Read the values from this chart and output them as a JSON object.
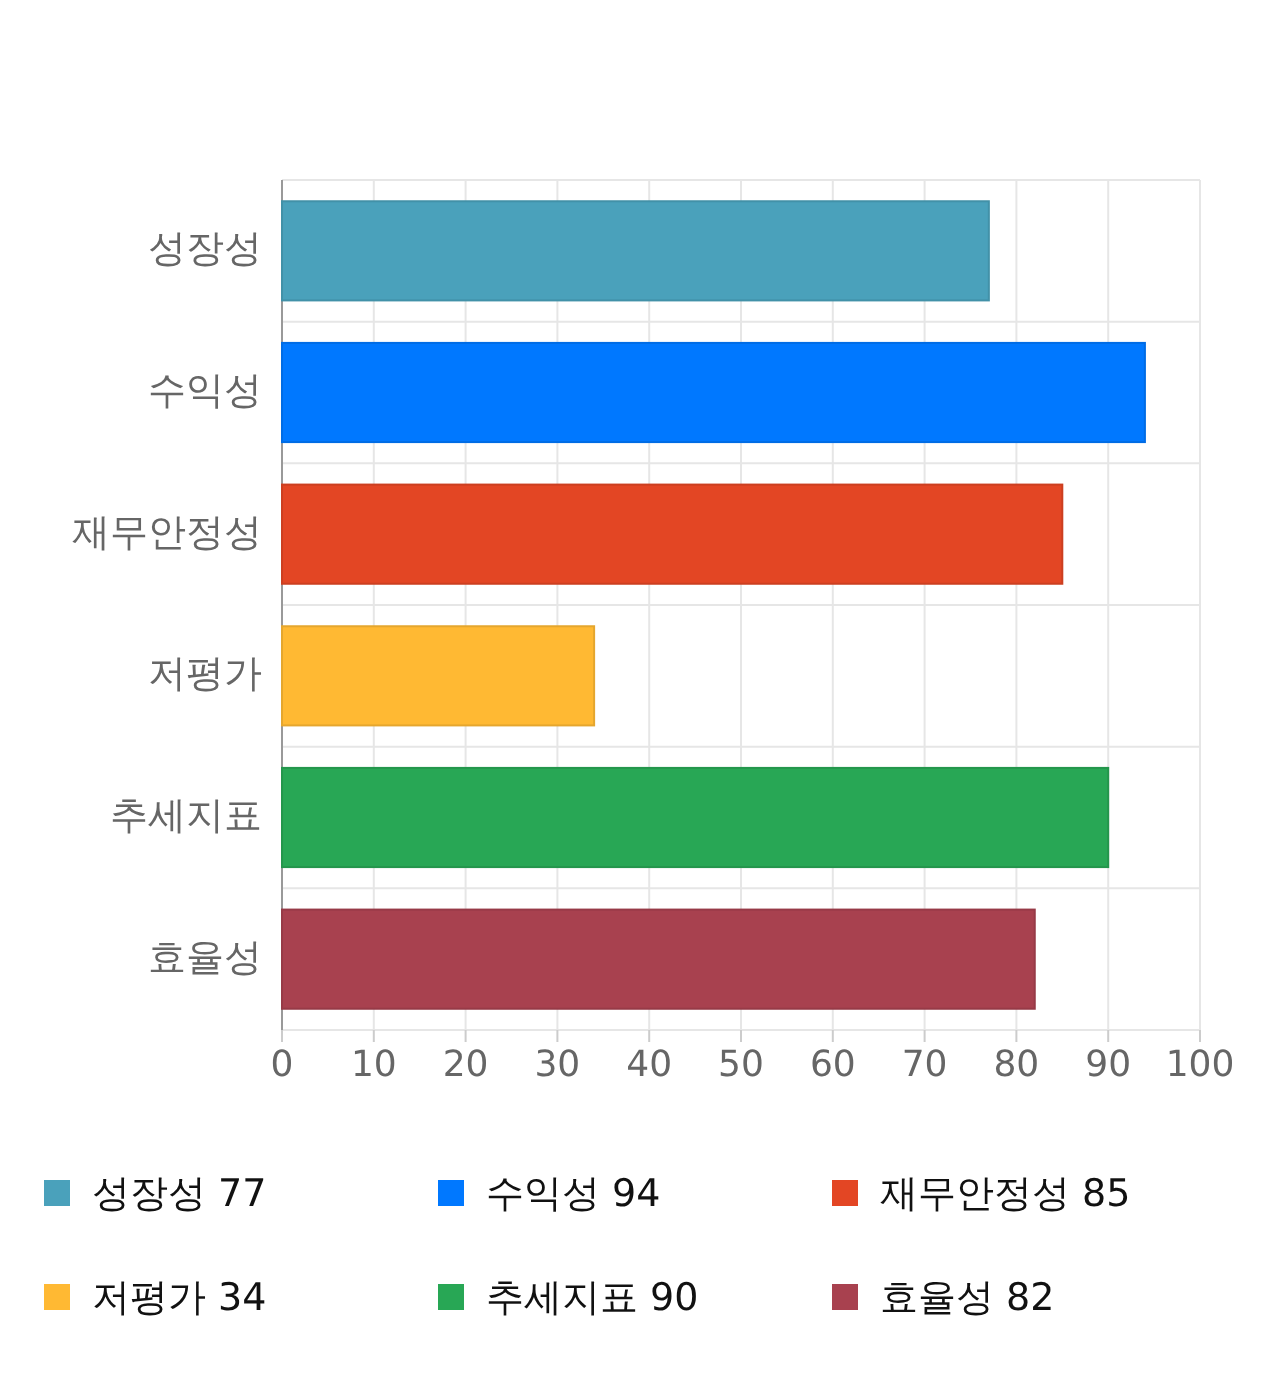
{
  "chart_data": {
    "type": "bar",
    "orientation": "horizontal",
    "categories": [
      "성장성",
      "수익성",
      "재무안정성",
      "저평가",
      "추세지표",
      "효율성"
    ],
    "series": [
      {
        "name": "성장성 77",
        "color": "#4aa1bb",
        "values": [
          77,
          null,
          null,
          null,
          null,
          null
        ]
      },
      {
        "name": "수익성 94",
        "color": "#0078ff",
        "values": [
          null,
          94,
          null,
          null,
          null,
          null
        ]
      },
      {
        "name": "재무안정성 85",
        "color": "#e34624",
        "values": [
          null,
          null,
          85,
          null,
          null,
          null
        ]
      },
      {
        "name": "저평가 34",
        "color": "#ffb933",
        "values": [
          null,
          null,
          null,
          34,
          null,
          null
        ]
      },
      {
        "name": "추세지표 90",
        "color": "#28a755",
        "values": [
          null,
          null,
          null,
          null,
          90,
          null
        ]
      },
      {
        "name": "효율성 82",
        "color": "#a8414f",
        "values": [
          null,
          null,
          null,
          null,
          null,
          82
        ]
      }
    ],
    "xlim": [
      0,
      100
    ],
    "xticks": [
      0,
      10,
      20,
      30,
      40,
      50,
      60,
      70,
      80,
      90,
      100
    ],
    "grid": true,
    "legend": "bottom"
  }
}
